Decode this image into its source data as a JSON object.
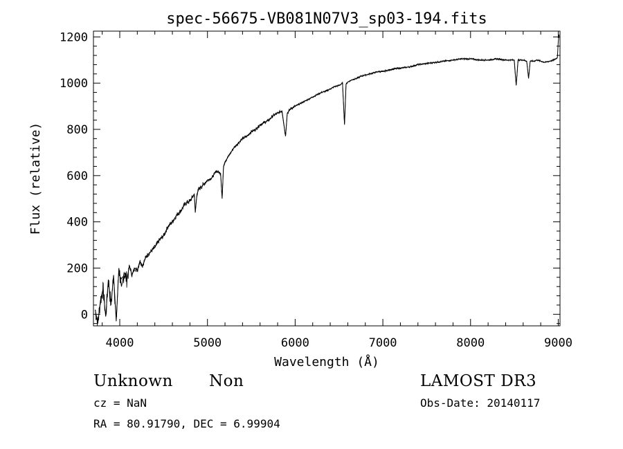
{
  "chart_data": {
    "type": "line",
    "title": "spec-56675-VB081N07V3_sp03-194.fits",
    "xlabel": "Wavelength (Å)",
    "ylabel": "Flux (relative)",
    "xlim": [
      3700,
      9020
    ],
    "ylim": [
      -50,
      1225
    ],
    "x_ticks": [
      4000,
      5000,
      6000,
      7000,
      8000,
      9000
    ],
    "x_tick_labels": [
      "4000",
      "5000",
      "6000",
      "7000",
      "8000",
      "9000"
    ],
    "y_ticks": [
      0,
      200,
      400,
      600,
      800,
      1000,
      1200
    ],
    "y_tick_labels": [
      "0",
      "200",
      "400",
      "600",
      "800",
      "1000",
      "1200"
    ],
    "grid": false,
    "series": [
      {
        "name": "flux",
        "x": [
          3720,
          3750,
          3780,
          3810,
          3840,
          3870,
          3900,
          3930,
          3960,
          3990,
          4020,
          4050,
          4080,
          4110,
          4140,
          4170,
          4200,
          4230,
          4260,
          4300,
          4350,
          4400,
          4450,
          4500,
          4550,
          4600,
          4650,
          4700,
          4750,
          4800,
          4850,
          4861,
          4880,
          4900,
          4950,
          5000,
          5050,
          5100,
          5150,
          5167,
          5183,
          5200,
          5250,
          5300,
          5350,
          5400,
          5450,
          5500,
          5550,
          5600,
          5650,
          5700,
          5750,
          5800,
          5850,
          5890,
          5910,
          5950,
          6000,
          6050,
          6100,
          6150,
          6200,
          6250,
          6300,
          6350,
          6400,
          6450,
          6500,
          6540,
          6563,
          6580,
          6600,
          6650,
          6700,
          6750,
          6800,
          6850,
          6900,
          6950,
          7000,
          7100,
          7200,
          7300,
          7400,
          7500,
          7600,
          7700,
          7800,
          7900,
          8000,
          8100,
          8200,
          8300,
          8400,
          8498,
          8520,
          8542,
          8560,
          8600,
          8640,
          8662,
          8680,
          8720,
          8760,
          8800,
          8850,
          8900,
          8950,
          8990,
          9000,
          9010
        ],
        "y": [
          20,
          -40,
          60,
          110,
          -10,
          150,
          40,
          170,
          -30,
          200,
          120,
          180,
          150,
          210,
          170,
          200,
          190,
          230,
          210,
          250,
          270,
          290,
          320,
          340,
          380,
          400,
          430,
          450,
          480,
          490,
          520,
          440,
          520,
          540,
          560,
          580,
          590,
          620,
          610,
          500,
          640,
          660,
          690,
          720,
          740,
          760,
          770,
          790,
          800,
          820,
          830,
          840,
          860,
          870,
          880,
          770,
          870,
          890,
          900,
          910,
          920,
          930,
          940,
          950,
          960,
          965,
          975,
          985,
          990,
          1000,
          820,
          995,
          1005,
          1015,
          1020,
          1030,
          1035,
          1040,
          1045,
          1050,
          1050,
          1060,
          1065,
          1070,
          1080,
          1085,
          1090,
          1095,
          1100,
          1105,
          1105,
          1100,
          1100,
          1105,
          1100,
          1100,
          990,
          1100,
          1100,
          1100,
          1095,
          1020,
          1095,
          1095,
          1100,
          1095,
          1090,
          1095,
          1100,
          1110,
          1180,
          1210
        ]
      }
    ]
  },
  "info": {
    "object_class": "Unknown",
    "subclass": "Non",
    "survey": "LAMOST DR3",
    "cz": "cz = NaN",
    "obs_date": "Obs-Date: 20140117",
    "coords": "RA =  80.91790, DEC =   6.99904"
  }
}
